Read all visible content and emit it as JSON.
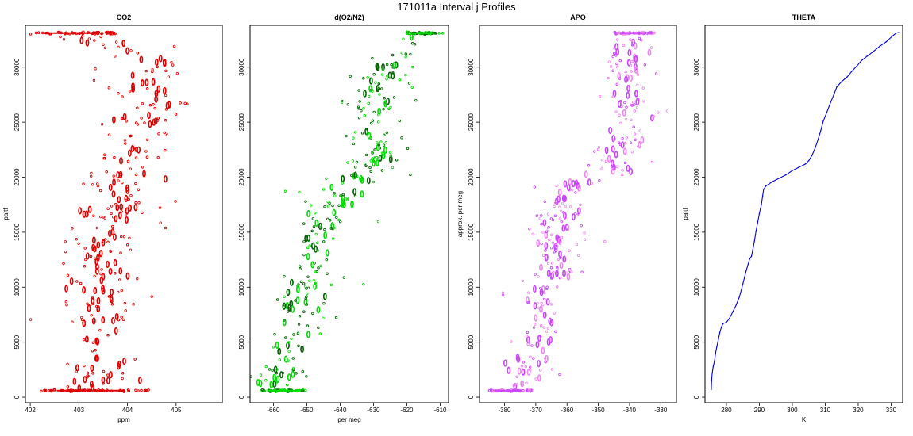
{
  "figure_title": "171011a   Interval j Profiles",
  "chart_data": [
    {
      "type": "scatter",
      "title": "CO2",
      "xlabel": "ppm",
      "ylabel": "paltf",
      "xlim": [
        401.9,
        405.95
      ],
      "ylim": [
        -500,
        33800
      ],
      "xticks": [
        402,
        403,
        404,
        405
      ],
      "yticks": [
        0,
        5000,
        10000,
        15000,
        20000,
        25000,
        30000
      ],
      "color": "#e00000",
      "marker": "open-circle",
      "seed": 11,
      "trend": [
        {
          "y": 600,
          "x": 403.4
        },
        {
          "y": 3000,
          "x": 403.45
        },
        {
          "y": 8000,
          "x": 403.5
        },
        {
          "y": 12000,
          "x": 403.4
        },
        {
          "y": 16000,
          "x": 403.6
        },
        {
          "y": 20000,
          "x": 403.85
        },
        {
          "y": 22000,
          "x": 404.0
        },
        {
          "y": 24000,
          "x": 404.3
        },
        {
          "y": 27000,
          "x": 404.5
        },
        {
          "y": 30000,
          "x": 404.4
        },
        {
          "y": 31500,
          "x": 403.8
        },
        {
          "y": 33000,
          "x": 403.1
        }
      ],
      "spread": 0.45,
      "edge_bands": [
        {
          "y": 600,
          "x_from": 402.2,
          "x_to": 404.5
        },
        {
          "y": 33100,
          "x_from": 402.0,
          "x_to": 403.8
        }
      ]
    },
    {
      "type": "scatter",
      "title": "d(O2/N2)",
      "xlabel": "per meg",
      "ylabel": "",
      "xlim": [
        -667,
        -607.5
      ],
      "ylim": [
        -500,
        33800
      ],
      "xticks": [
        -660,
        -650,
        -640,
        -630,
        -620,
        -610
      ],
      "yticks": [
        0,
        5000,
        10000,
        15000,
        20000,
        25000,
        30000
      ],
      "color": "#00dd00",
      "color2": "#006400",
      "marker": "open-circle",
      "seed": 23,
      "trend": [
        {
          "y": 600,
          "x": -660
        },
        {
          "y": 3000,
          "x": -657
        },
        {
          "y": 6000,
          "x": -653
        },
        {
          "y": 9000,
          "x": -651
        },
        {
          "y": 12000,
          "x": -648
        },
        {
          "y": 15000,
          "x": -646
        },
        {
          "y": 18000,
          "x": -641
        },
        {
          "y": 19500,
          "x": -638
        },
        {
          "y": 20500,
          "x": -630
        },
        {
          "y": 22000,
          "x": -626
        },
        {
          "y": 24000,
          "x": -631
        },
        {
          "y": 27000,
          "x": -630
        },
        {
          "y": 30000,
          "x": -627
        },
        {
          "y": 32000,
          "x": -619
        },
        {
          "y": 33100,
          "x": -614
        }
      ],
      "spread": 4.5,
      "edge_bands": [
        {
          "y": 600,
          "x_from": -664,
          "x_to": -650
        },
        {
          "y": 33100,
          "x_from": -620,
          "x_to": -609
        }
      ]
    },
    {
      "type": "scatter",
      "title": "APO",
      "xlabel": "",
      "ylabel": "approx. per meg",
      "xlim": [
        -388,
        -325
      ],
      "ylim": [
        -500,
        33800
      ],
      "xticks": [
        -380,
        -370,
        -360,
        -350,
        -340,
        -330
      ],
      "yticks": [
        0,
        5000,
        10000,
        15000,
        20000,
        25000,
        30000
      ],
      "color": "#cc44ff",
      "color2": "#ee88ee",
      "marker": "open-circle",
      "seed": 37,
      "trend": [
        {
          "y": 600,
          "x": -375
        },
        {
          "y": 3000,
          "x": -372
        },
        {
          "y": 6000,
          "x": -368
        },
        {
          "y": 9000,
          "x": -366
        },
        {
          "y": 12000,
          "x": -363
        },
        {
          "y": 15000,
          "x": -364
        },
        {
          "y": 18000,
          "x": -361
        },
        {
          "y": 19500,
          "x": -357
        },
        {
          "y": 20500,
          "x": -347
        },
        {
          "y": 22000,
          "x": -342
        },
        {
          "y": 25000,
          "x": -342
        },
        {
          "y": 28000,
          "x": -341
        },
        {
          "y": 31000,
          "x": -341
        },
        {
          "y": 33100,
          "x": -339
        }
      ],
      "spread": 4.8,
      "edge_bands": [
        {
          "y": 600,
          "x_from": -385,
          "x_to": -371
        },
        {
          "y": 33100,
          "x_from": -345,
          "x_to": -332
        }
      ]
    },
    {
      "type": "line",
      "title": "THETA",
      "xlabel": "K",
      "ylabel": "paltf",
      "xlim": [
        273.5,
        333.5
      ],
      "ylim": [
        -500,
        33800
      ],
      "xticks": [
        280,
        290,
        300,
        310,
        320,
        330
      ],
      "yticks": [
        0,
        5000,
        10000,
        15000,
        20000,
        25000,
        30000
      ],
      "color": "#0000dd",
      "points": [
        [
          275.4,
          700
        ],
        [
          275.5,
          1500
        ],
        [
          275.7,
          2200
        ],
        [
          276.0,
          2800
        ],
        [
          276.4,
          3300
        ],
        [
          276.7,
          4000
        ],
        [
          277.1,
          4600
        ],
        [
          277.6,
          5300
        ],
        [
          278.0,
          5900
        ],
        [
          278.5,
          6400
        ],
        [
          279.0,
          6700
        ],
        [
          280.0,
          6800
        ],
        [
          281.0,
          7200
        ],
        [
          282.0,
          7800
        ],
        [
          283.0,
          8400
        ],
        [
          283.9,
          9100
        ],
        [
          284.5,
          9700
        ],
        [
          285.0,
          10300
        ],
        [
          285.5,
          10900
        ],
        [
          286.0,
          11500
        ],
        [
          286.6,
          12100
        ],
        [
          287.1,
          12600
        ],
        [
          287.6,
          12800
        ],
        [
          288.0,
          13400
        ],
        [
          288.5,
          14200
        ],
        [
          289.0,
          15100
        ],
        [
          289.5,
          15900
        ],
        [
          290.0,
          16700
        ],
        [
          290.6,
          17500
        ],
        [
          291.0,
          18300
        ],
        [
          291.3,
          18900
        ],
        [
          292.0,
          19200
        ],
        [
          293.0,
          19400
        ],
        [
          294.0,
          19600
        ],
        [
          296.0,
          19900
        ],
        [
          298.0,
          20200
        ],
        [
          300.0,
          20600
        ],
        [
          302.0,
          20900
        ],
        [
          304.0,
          21200
        ],
        [
          305.0,
          21500
        ],
        [
          306.0,
          22000
        ],
        [
          307.0,
          22700
        ],
        [
          307.8,
          23400
        ],
        [
          308.6,
          24200
        ],
        [
          309.4,
          25100
        ],
        [
          310.5,
          25900
        ],
        [
          311.5,
          26700
        ],
        [
          312.6,
          27500
        ],
        [
          313.5,
          28200
        ],
        [
          315.0,
          28700
        ],
        [
          316.6,
          29100
        ],
        [
          318.0,
          29600
        ],
        [
          319.6,
          30100
        ],
        [
          321.0,
          30600
        ],
        [
          322.7,
          31000
        ],
        [
          324.5,
          31400
        ],
        [
          326.5,
          31900
        ],
        [
          328.5,
          32300
        ],
        [
          330.3,
          32800
        ],
        [
          331.5,
          33100
        ],
        [
          332.3,
          33150
        ]
      ]
    }
  ]
}
